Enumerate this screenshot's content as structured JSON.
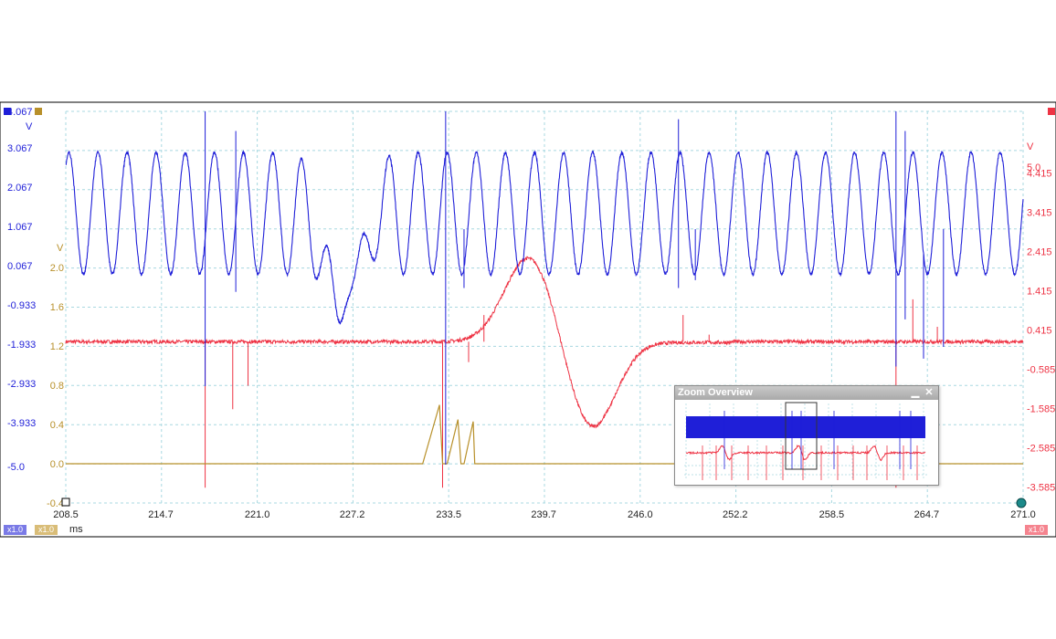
{
  "colors": {
    "ch_a": "#1f1fd8",
    "ch_b": "#b8902a",
    "ch_c": "#ee3344",
    "grid": "#a8d8e0"
  },
  "axes": {
    "left_blue": {
      "unit": "V",
      "ticks": [
        "4.067",
        "3.067",
        "2.067",
        "1.067",
        "0.067",
        "-0.933",
        "-1.933",
        "-2.933",
        "-3.933",
        "-5.0"
      ]
    },
    "left_gold": {
      "unit": "V",
      "ticks": [
        "2.0",
        "1.6",
        "1.2",
        "0.8",
        "0.4",
        "0.0",
        "-0.4"
      ]
    },
    "right_red": {
      "unit": "V",
      "ticks": [
        "5.0",
        "4.415",
        "3.415",
        "2.415",
        "1.415",
        "0.415",
        "-0.585",
        "-1.585",
        "-2.585",
        "-3.585"
      ]
    },
    "x": {
      "unit": "ms",
      "ticks": [
        "208.5",
        "214.7",
        "221.0",
        "227.2",
        "233.5",
        "239.7",
        "246.0",
        "252.2",
        "258.5",
        "264.7",
        "271.0"
      ]
    }
  },
  "badges": {
    "ch_a_scale": "x1.0",
    "ch_b_scale": "x1.0",
    "ch_c_scale": "x1.0"
  },
  "zoom_overview": {
    "title": "Zoom Overview",
    "min_glyph": "▁",
    "close_glyph": "✕"
  },
  "chart_data": {
    "type": "line",
    "x_range": [
      208.5,
      271.0
    ],
    "xlabel": "ms",
    "grid": true,
    "series": [
      {
        "description": "blue oscillation ~1.9 ms period between about -0.2 V and 3.0 V with a dip near 226 ms reaching about -1.5 V and spikes near 217.6, 233.3, 262.7 ms"
      },
      {
        "description": "red near 0.1 V flat, bump peaking about 2.3 V near 238.8 ms, trough about -2.1 V near 242.8 ms"
      },
      {
        "description": "gold near 0.0 V with sawtooth ramps up to about 0.6 V between 231.8 and 235.0 ms"
      }
    ]
  }
}
